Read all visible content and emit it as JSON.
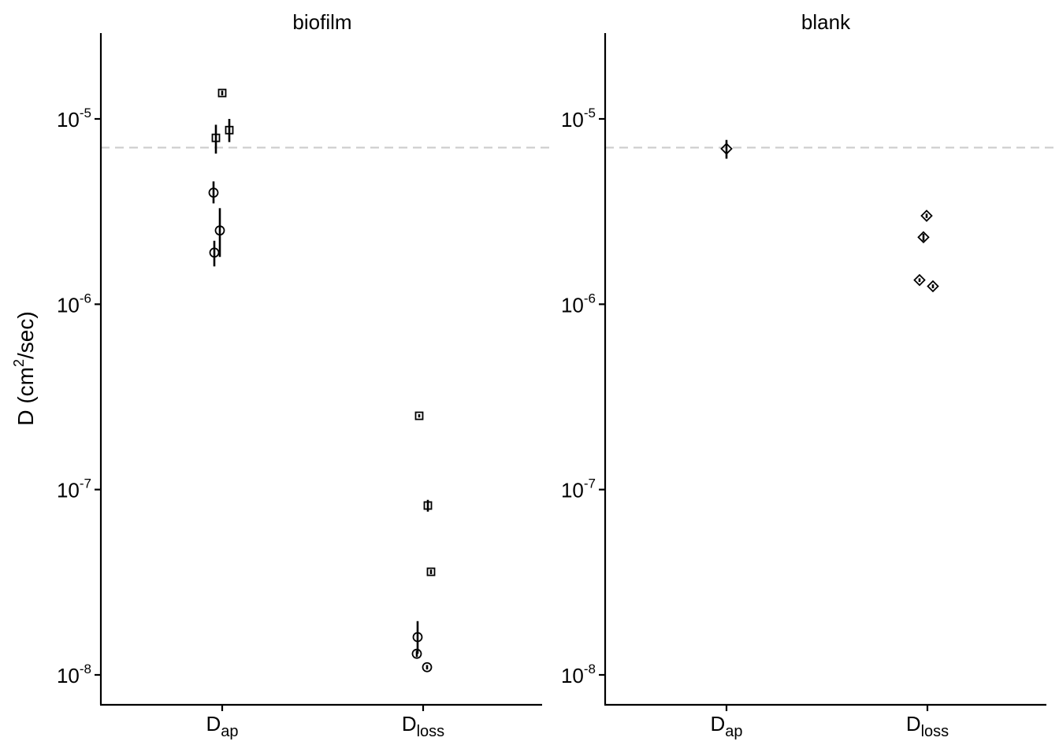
{
  "chart_data": {
    "type": "scatter",
    "y_axis": {
      "title_main": "D",
      "title_unit": "cm",
      "title_unit_exp": "2",
      "title_unit_rest": "/sec",
      "scale": "log10",
      "ylim": [
        7e-09,
        3e-05
      ],
      "ticks": [
        {
          "value": 1e-05,
          "base": "10",
          "exp": "-5"
        },
        {
          "value": 1e-06,
          "base": "10",
          "exp": "-6"
        },
        {
          "value": 1e-07,
          "base": "10",
          "exp": "-7"
        },
        {
          "value": 1e-08,
          "base": "10",
          "exp": "-8"
        }
      ]
    },
    "x_axis": {
      "categories": [
        {
          "main": "D",
          "sub": "ap"
        },
        {
          "main": "D",
          "sub": "loss"
        }
      ]
    },
    "reference_line": {
      "value": 7e-06,
      "style": "dashed",
      "color": "#cccccc"
    },
    "grid": false,
    "legend": "none",
    "panels": [
      {
        "title": "biofilm",
        "points": [
          {
            "category": 0,
            "jitter": 0.0,
            "y": 1.38e-05,
            "ymin": 1.34e-05,
            "ymax": 1.42e-05,
            "shape": "square"
          },
          {
            "category": 0,
            "jitter": -0.08,
            "y": 7.9e-06,
            "ymin": 6.5e-06,
            "ymax": 9.3e-06,
            "shape": "square"
          },
          {
            "category": 0,
            "jitter": 0.09,
            "y": 8.7e-06,
            "ymin": 7.5e-06,
            "ymax": 1e-05,
            "shape": "square"
          },
          {
            "category": 0,
            "jitter": -0.11,
            "y": 4e-06,
            "ymin": 3.5e-06,
            "ymax": 4.6e-06,
            "shape": "circle"
          },
          {
            "category": 0,
            "jitter": -0.03,
            "y": 2.5e-06,
            "ymin": 1.8e-06,
            "ymax": 3.3e-06,
            "shape": "circle"
          },
          {
            "category": 0,
            "jitter": -0.1,
            "y": 1.9e-06,
            "ymin": 1.6e-06,
            "ymax": 2.2e-06,
            "shape": "circle"
          },
          {
            "category": 1,
            "jitter": -0.05,
            "y": 2.5e-07,
            "ymin": 2.45e-07,
            "ymax": 2.55e-07,
            "shape": "square"
          },
          {
            "category": 1,
            "jitter": 0.06,
            "y": 8.2e-08,
            "ymin": 7.6e-08,
            "ymax": 8.8e-08,
            "shape": "square"
          },
          {
            "category": 1,
            "jitter": 0.1,
            "y": 3.6e-08,
            "ymin": 3.5e-08,
            "ymax": 3.7e-08,
            "shape": "square"
          },
          {
            "category": 1,
            "jitter": -0.07,
            "y": 1.6e-08,
            "ymin": 1.3e-08,
            "ymax": 1.95e-08,
            "shape": "circle"
          },
          {
            "category": 1,
            "jitter": -0.08,
            "y": 1.3e-08,
            "ymin": 1.25e-08,
            "ymax": 1.35e-08,
            "shape": "circle"
          },
          {
            "category": 1,
            "jitter": 0.05,
            "y": 1.1e-08,
            "ymin": 1.07e-08,
            "ymax": 1.13e-08,
            "shape": "circle"
          }
        ]
      },
      {
        "title": "blank",
        "points": [
          {
            "category": 0,
            "jitter": 0.0,
            "y": 6.9e-06,
            "ymin": 6.1e-06,
            "ymax": 7.7e-06,
            "shape": "diamond"
          },
          {
            "category": 1,
            "jitter": -0.01,
            "y": 3e-06,
            "ymin": 2.92e-06,
            "ymax": 3.08e-06,
            "shape": "diamond"
          },
          {
            "category": 1,
            "jitter": -0.05,
            "y": 2.3e-06,
            "ymin": 2.2e-06,
            "ymax": 2.4e-06,
            "shape": "diamond"
          },
          {
            "category": 1,
            "jitter": -0.1,
            "y": 1.35e-06,
            "ymin": 1.32e-06,
            "ymax": 1.38e-06,
            "shape": "diamond"
          },
          {
            "category": 1,
            "jitter": 0.07,
            "y": 1.25e-06,
            "ymin": 1.22e-06,
            "ymax": 1.28e-06,
            "shape": "diamond"
          }
        ]
      }
    ]
  }
}
